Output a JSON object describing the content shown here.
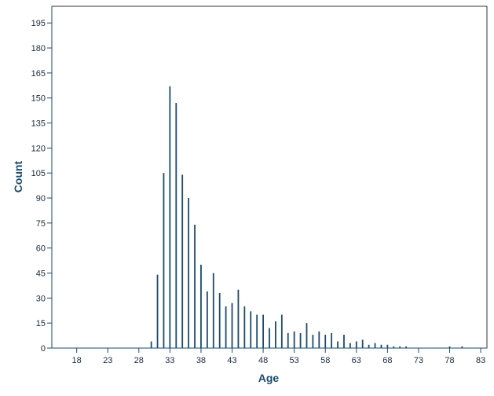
{
  "chart_data": {
    "type": "bar",
    "xlabel": "Age",
    "ylabel": "Count",
    "xlim": [
      14,
      84
    ],
    "ylim": [
      0,
      205
    ],
    "xticks": [
      18,
      23,
      28,
      33,
      38,
      43,
      48,
      53,
      58,
      63,
      68,
      73,
      78,
      83
    ],
    "yticks": [
      0,
      15,
      30,
      45,
      60,
      75,
      90,
      105,
      120,
      135,
      150,
      165,
      180,
      195
    ],
    "grid": false,
    "bar_color": "#1d4a6b",
    "axis_color": "#1d4a6b",
    "x": [
      30,
      31,
      32,
      33,
      34,
      35,
      36,
      37,
      38,
      39,
      40,
      41,
      42,
      43,
      44,
      45,
      46,
      47,
      48,
      49,
      50,
      51,
      52,
      53,
      54,
      55,
      56,
      57,
      58,
      59,
      60,
      61,
      62,
      63,
      64,
      65,
      66,
      67,
      68,
      69,
      70,
      71,
      78,
      80
    ],
    "values": [
      4,
      44,
      105,
      157,
      147,
      104,
      90,
      74,
      50,
      34,
      45,
      33,
      25,
      27,
      35,
      25,
      22,
      20,
      20,
      12,
      16,
      20,
      9,
      10,
      9,
      15,
      8,
      10,
      8,
      9,
      4,
      8,
      3,
      4,
      5,
      2,
      3,
      2,
      2,
      1,
      1,
      1,
      1,
      1
    ]
  }
}
